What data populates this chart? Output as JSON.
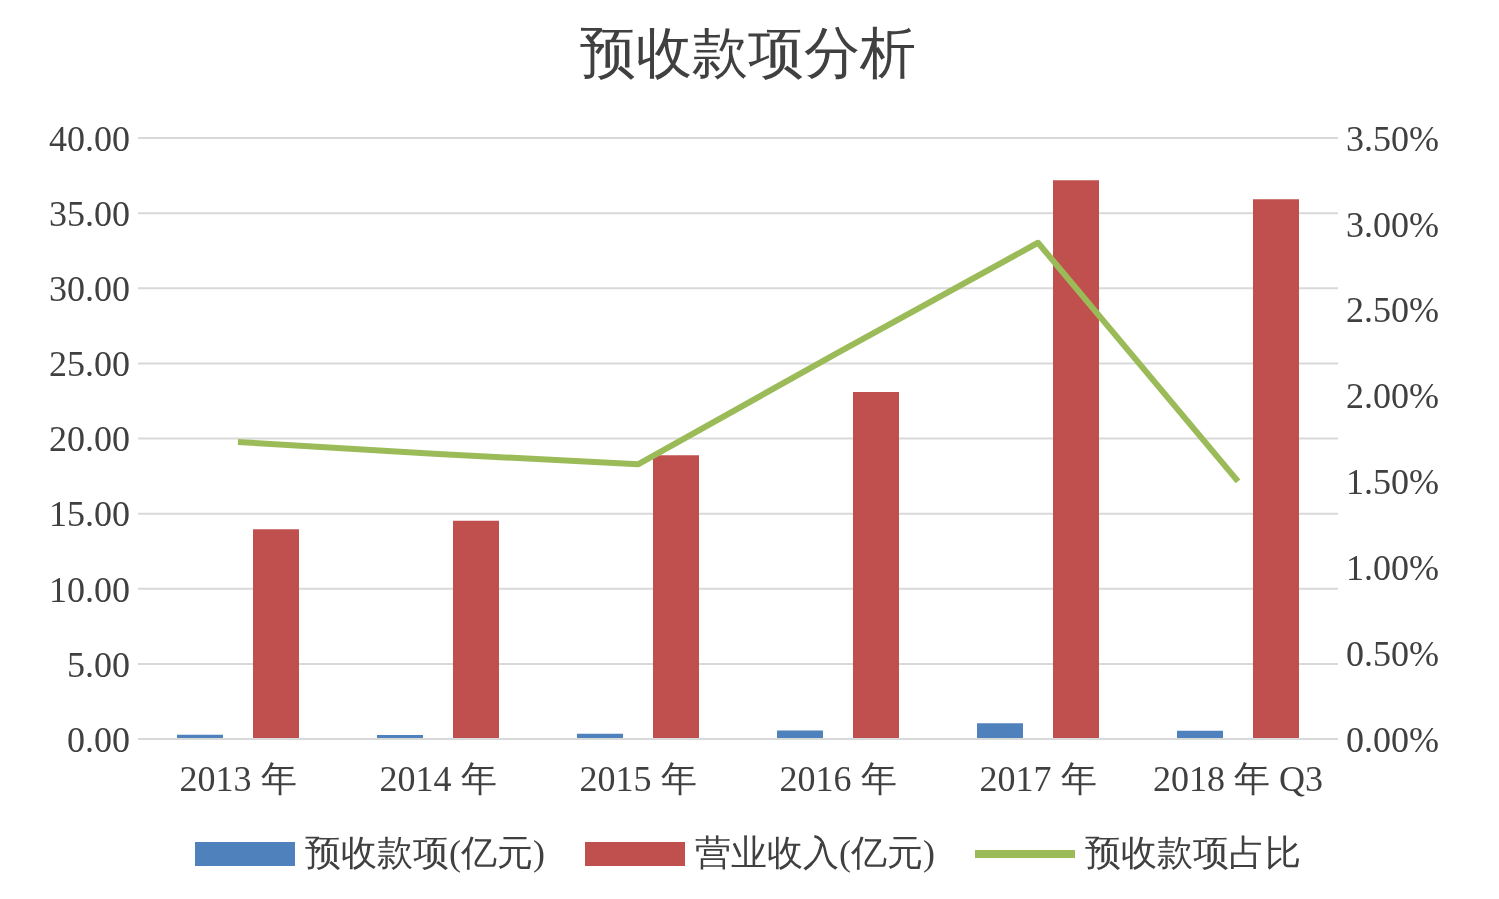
{
  "chart_data": {
    "type": "bar",
    "title": "预收款项分析",
    "categories": [
      "2013 年",
      "2014 年",
      "2015 年",
      "2016 年",
      "2017 年",
      "2018 年 Q3"
    ],
    "series": [
      {
        "name": "预收款项(亿元)",
        "color": "#4f81bd",
        "values": [
          0.28,
          0.27,
          0.35,
          0.56,
          1.05,
          0.55
        ]
      },
      {
        "name": "营业收入(亿元)",
        "color": "#c0504d",
        "values": [
          13.96,
          14.53,
          18.88,
          23.09,
          37.19,
          35.93
        ]
      },
      {
        "name": "预收款项占比",
        "type": "line",
        "axis": "y2",
        "color": "#9bbb59",
        "values": [
          1.73,
          1.66,
          1.6,
          2.25,
          2.89,
          1.5
        ]
      }
    ],
    "ylim": [
      0,
      40
    ],
    "yticks": [
      {
        "value": 0,
        "label": "0.00"
      },
      {
        "value": 5,
        "label": "5.00"
      },
      {
        "value": 10,
        "label": "10.00"
      },
      {
        "value": 15,
        "label": "15.00"
      },
      {
        "value": 20,
        "label": "20.00"
      },
      {
        "value": 25,
        "label": "25.00"
      },
      {
        "value": 30,
        "label": "30.00"
      },
      {
        "value": 35,
        "label": "35.00"
      },
      {
        "value": 40,
        "label": "40.00"
      }
    ],
    "y2lim": [
      0,
      3.5
    ],
    "y2ticks": [
      {
        "value": 0,
        "label": "0.00%"
      },
      {
        "value": 0.5,
        "label": "0.50%"
      },
      {
        "value": 1,
        "label": "1.00%"
      },
      {
        "value": 1.5,
        "label": "1.50%"
      },
      {
        "value": 2,
        "label": "2.00%"
      },
      {
        "value": 2.5,
        "label": "2.50%"
      },
      {
        "value": 3,
        "label": "3.00%"
      },
      {
        "value": 3.5,
        "label": "3.50%"
      }
    ],
    "grid": "y",
    "legend": "bottom",
    "marker": "none"
  }
}
